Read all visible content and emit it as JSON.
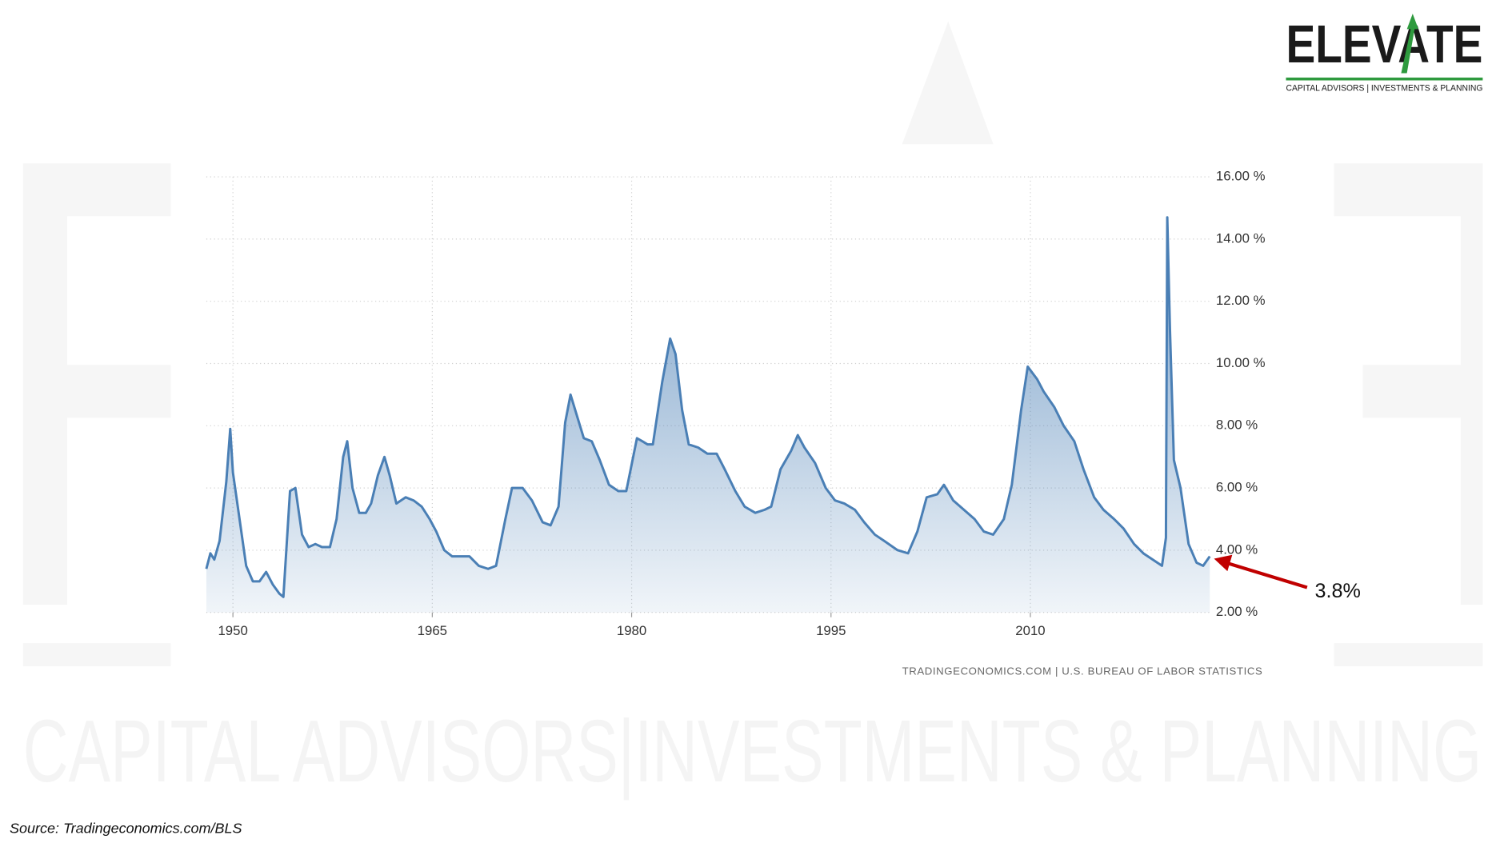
{
  "logo": {
    "name": "ELEVATE",
    "tagline": "CAPITAL ADVISORS | INVESTMENTS & PLANNING"
  },
  "watermark": "CAPITAL ADVISORS|INVESTMENTS & PLANNING",
  "source": "Source: Tradingeconomics.com/BLS",
  "chart_data": {
    "type": "area",
    "attribution": "TRADINGECONOMICS.COM  |  U.S. BUREAU OF LABOR STATISTICS",
    "annotation": "3.8%",
    "color": "#4a7fb5",
    "grid": true,
    "xlim": [
      1948,
      2023.6
    ],
    "xticks": [
      1950,
      1965,
      1980,
      1995,
      2010
    ],
    "ylim": [
      2,
      16
    ],
    "yticks": [
      {
        "value": 2,
        "label": "2.00 %"
      },
      {
        "value": 4,
        "label": "4.00 %"
      },
      {
        "value": 6,
        "label": "6.00 %"
      },
      {
        "value": 8,
        "label": "8.00 %"
      },
      {
        "value": 10,
        "label": "10.00 %"
      },
      {
        "value": 12,
        "label": "12.00 %"
      },
      {
        "value": 14,
        "label": "14.00 %"
      },
      {
        "value": 16,
        "label": "16.00 %"
      }
    ],
    "x": [
      1948.0,
      1948.3,
      1948.6,
      1949.0,
      1949.5,
      1949.8,
      1950.0,
      1950.5,
      1951.0,
      1951.5,
      1952.0,
      1952.5,
      1953.0,
      1953.5,
      1953.8,
      1954.3,
      1954.7,
      1955.2,
      1955.7,
      1956.2,
      1956.7,
      1957.3,
      1957.8,
      1958.3,
      1958.6,
      1959.0,
      1959.5,
      1960.0,
      1960.4,
      1960.9,
      1961.4,
      1961.8,
      1962.3,
      1963.0,
      1963.6,
      1964.2,
      1964.8,
      1965.3,
      1965.9,
      1966.5,
      1967.2,
      1967.8,
      1968.5,
      1969.2,
      1969.8,
      1970.5,
      1971.0,
      1971.8,
      1972.5,
      1973.3,
      1973.9,
      1974.5,
      1975.0,
      1975.4,
      1975.9,
      1976.4,
      1977.0,
      1977.6,
      1978.3,
      1979.0,
      1979.6,
      1980.4,
      1980.8,
      1981.2,
      1981.6,
      1982.3,
      1982.9,
      1983.3,
      1983.8,
      1984.3,
      1985.0,
      1985.7,
      1986.4,
      1987.0,
      1987.8,
      1988.5,
      1989.3,
      1990.0,
      1990.5,
      1991.2,
      1992.0,
      1992.5,
      1993.0,
      1993.8,
      1994.6,
      1995.3,
      1996.0,
      1996.8,
      1997.5,
      1998.3,
      1999.0,
      2000.0,
      2000.8,
      2001.5,
      2002.2,
      2003.0,
      2003.5,
      2004.2,
      2005.0,
      2005.8,
      2006.5,
      2007.2,
      2008.0,
      2008.6,
      2009.3,
      2009.8,
      2010.5,
      2011.0,
      2011.8,
      2012.5,
      2013.3,
      2014.0,
      2014.8,
      2015.5,
      2016.3,
      2017.0,
      2017.8,
      2018.5,
      2019.2,
      2019.9,
      2020.2,
      2020.3,
      2020.5,
      2020.8,
      2021.3,
      2021.9,
      2022.5,
      2023.0,
      2023.5
    ],
    "values": [
      3.4,
      3.9,
      3.7,
      4.3,
      6.2,
      7.9,
      6.5,
      5.0,
      3.5,
      3.0,
      3.0,
      3.3,
      2.9,
      2.6,
      2.5,
      5.9,
      6.0,
      4.5,
      4.1,
      4.2,
      4.1,
      4.1,
      5.0,
      7.0,
      7.5,
      6.0,
      5.2,
      5.2,
      5.5,
      6.4,
      7.0,
      6.4,
      5.5,
      5.7,
      5.6,
      5.4,
      5.0,
      4.6,
      4.0,
      3.8,
      3.8,
      3.8,
      3.5,
      3.4,
      3.5,
      5.0,
      6.0,
      6.0,
      5.6,
      4.9,
      4.8,
      5.4,
      8.1,
      9.0,
      8.3,
      7.6,
      7.5,
      6.9,
      6.1,
      5.9,
      5.9,
      7.6,
      7.5,
      7.4,
      7.4,
      9.4,
      10.8,
      10.3,
      8.5,
      7.4,
      7.3,
      7.1,
      7.1,
      6.6,
      5.9,
      5.4,
      5.2,
      5.3,
      5.4,
      6.6,
      7.2,
      7.7,
      7.3,
      6.8,
      6.0,
      5.6,
      5.5,
      5.3,
      4.9,
      4.5,
      4.3,
      4.0,
      3.9,
      4.6,
      5.7,
      5.8,
      6.1,
      5.6,
      5.3,
      5.0,
      4.6,
      4.5,
      5.0,
      6.1,
      8.5,
      9.9,
      9.5,
      9.1,
      8.6,
      8.0,
      7.5,
      6.6,
      5.7,
      5.3,
      5.0,
      4.7,
      4.2,
      3.9,
      3.7,
      3.5,
      4.4,
      14.7,
      11.1,
      6.9,
      6.0,
      4.2,
      3.6,
      3.5,
      3.8
    ]
  }
}
